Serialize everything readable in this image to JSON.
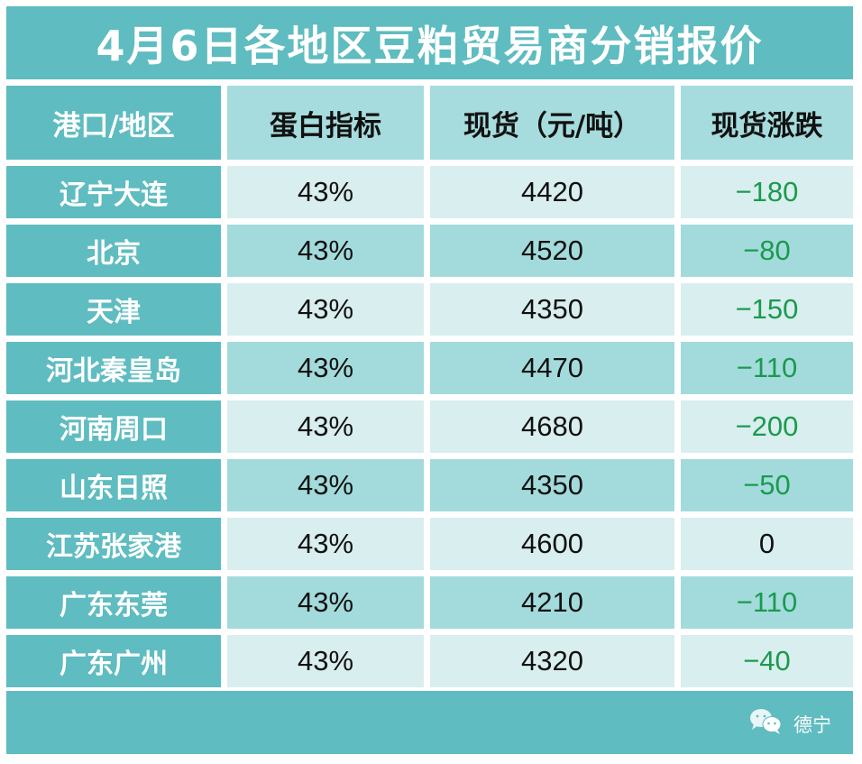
{
  "title": "4月6日各地区豆粕贸易商分销报价",
  "colors": {
    "teal": "#5fbcc0",
    "header_light": "#a6dcdd",
    "row_light": "#d9eeee",
    "row_mid": "#a3dbdc",
    "down_green": "#1a9a4e",
    "flat": "#111111"
  },
  "table": {
    "headers": [
      "港口/地区",
      "蛋白指标",
      "现货（元/吨）",
      "现货涨跌"
    ],
    "rows": [
      {
        "region": "辽宁大连",
        "protein": "43%",
        "price": "4420",
        "change": "−180"
      },
      {
        "region": "北京",
        "protein": "43%",
        "price": "4520",
        "change": "−80"
      },
      {
        "region": "天津",
        "protein": "43%",
        "price": "4350",
        "change": "−150"
      },
      {
        "region": "河北秦皇岛",
        "protein": "43%",
        "price": "4470",
        "change": "−110"
      },
      {
        "region": "河南周口",
        "protein": "43%",
        "price": "4680",
        "change": "−200"
      },
      {
        "region": "山东日照",
        "protein": "43%",
        "price": "4350",
        "change": "−50"
      },
      {
        "region": "江苏张家港",
        "protein": "43%",
        "price": "4600",
        "change": "0"
      },
      {
        "region": "广东东莞",
        "protein": "43%",
        "price": "4210",
        "change": "−110"
      },
      {
        "region": "广东广州",
        "protein": "43%",
        "price": "4320",
        "change": "−40"
      }
    ]
  },
  "footer": {
    "brand_icon": "wechat-icon",
    "brand_label": "德宁"
  }
}
